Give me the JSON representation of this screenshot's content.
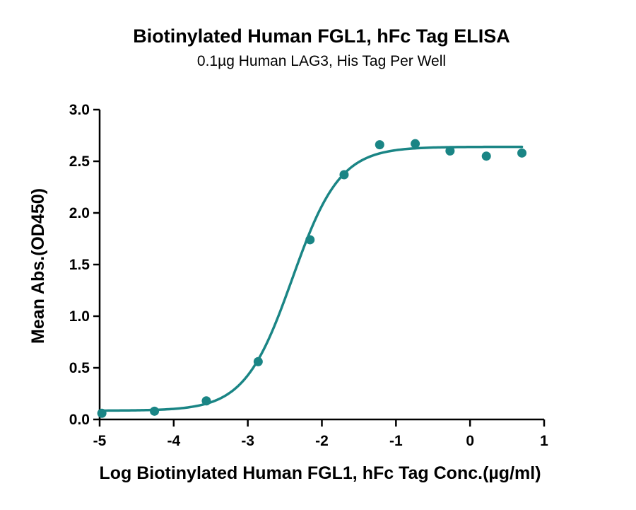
{
  "chart_data": {
    "type": "scatter",
    "title": "Biotinylated Human FGL1, hFc Tag ELISA",
    "subtitle": "0.1µg Human LAG3, His Tag Per Well",
    "xlabel": "Log Biotinylated Human FGL1, hFc Tag Conc.(µg/ml)",
    "ylabel": "Mean Abs.(OD450)",
    "xlim": [
      -5,
      1
    ],
    "ylim": [
      0,
      3.0
    ],
    "x_ticks": [
      -5,
      -4,
      -3,
      -2,
      -1,
      0,
      1
    ],
    "x_tick_labels": [
      "-5",
      "-4",
      "-3",
      "-2",
      "-1",
      "0",
      "1"
    ],
    "y_ticks": [
      0,
      0.5,
      1.0,
      1.5,
      2.0,
      2.5,
      3.0
    ],
    "y_tick_labels": [
      "0.0",
      "0.5",
      "1.0",
      "1.5",
      "2.0",
      "2.5",
      "3.0"
    ],
    "grid": false,
    "legend": "none",
    "color": "#1a8585",
    "series": [
      {
        "x": [
          -4.97,
          -4.26,
          -3.56,
          -2.86,
          -2.16,
          -1.7,
          -1.22,
          -0.74,
          -0.27,
          0.22,
          0.7
        ],
        "y": [
          0.06,
          0.08,
          0.18,
          0.56,
          1.74,
          2.37,
          2.66,
          2.67,
          2.6,
          2.55,
          2.58
        ]
      }
    ],
    "fit_curve": {
      "bottom": 0.085,
      "top": 2.64,
      "log_ec50": -2.4,
      "hill_slope": 1.35
    }
  }
}
